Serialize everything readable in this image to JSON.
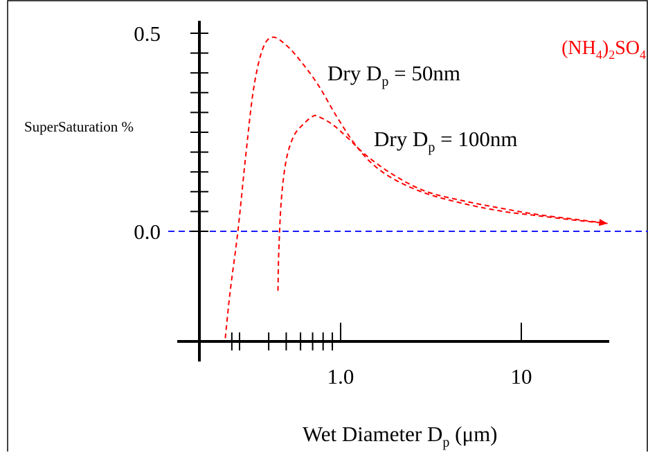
{
  "chart_data": {
    "type": "line",
    "title": "",
    "compound_label": {
      "base": "(NH",
      "sub1": "4",
      "mid": ")",
      "sub2": "2",
      "tail": "SO",
      "sub3": "4"
    },
    "ylabel": "SuperSaturation %",
    "xlabel": {
      "main": "Wet Diameter D",
      "sub": "p",
      "tail": " (μm)"
    },
    "x_scale": "log",
    "x_ticks": [
      {
        "value": 1.0,
        "label": "1.0"
      },
      {
        "value": 10,
        "label": "10"
      }
    ],
    "y_ticks": [
      {
        "value": 0.0,
        "label": "0.0"
      },
      {
        "value": 0.5,
        "label": "0.5"
      }
    ],
    "ylim": [
      -0.27,
      0.5
    ],
    "grid": false,
    "zero_reference": {
      "y": 0.0,
      "color": "#1a1aff"
    },
    "series": [
      {
        "label": {
          "main": "Dry D",
          "sub": "p",
          "tail": " = 50nm"
        },
        "color": "#ff0000",
        "x": [
          0.23,
          0.245,
          0.27,
          0.3,
          0.33,
          0.37,
          0.42,
          0.5,
          0.6,
          0.75,
          0.95,
          1.2,
          1.5,
          2.0,
          3.0,
          5.0,
          8.0,
          12.0,
          20.0,
          30.0
        ],
        "y": [
          -0.27,
          -0.15,
          0.0,
          0.2,
          0.36,
          0.46,
          0.49,
          0.47,
          0.43,
          0.37,
          0.29,
          0.22,
          0.17,
          0.13,
          0.095,
          0.068,
          0.05,
          0.04,
          0.028,
          0.02
        ]
      },
      {
        "label": {
          "main": "Dry D",
          "sub": "p",
          "tail": " = 100nm"
        },
        "color": "#ff0000",
        "x": [
          0.45,
          0.455,
          0.47,
          0.5,
          0.55,
          0.62,
          0.7,
          0.75,
          0.9,
          1.1,
          1.4,
          2.0,
          3.0,
          5.0,
          8.0,
          12.0,
          20.0,
          30.0
        ],
        "y": [
          -0.15,
          -0.05,
          0.08,
          0.18,
          0.24,
          0.27,
          0.29,
          0.29,
          0.27,
          0.235,
          0.19,
          0.14,
          0.1,
          0.075,
          0.057,
          0.043,
          0.03,
          0.02
        ]
      }
    ]
  }
}
